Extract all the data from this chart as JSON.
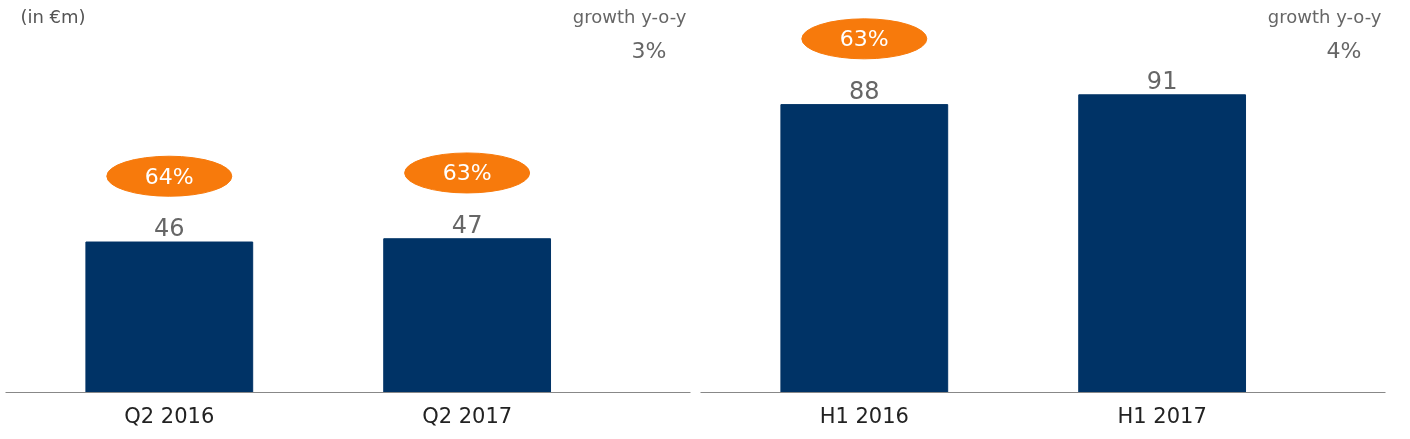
{
  "chart_data": [
    {
      "type": "bar",
      "subtitle": "(in €m)",
      "categories": [
        "Q2 2016",
        "Q2 2017"
      ],
      "values": [
        46,
        47
      ],
      "color": "#003366",
      "data_labels": true,
      "annotations": [
        "growth y-o-y",
        "3%",
        "64%",
        "63%"
      ]
    },
    {
      "type": "bar",
      "categories": [
        "H1 2016",
        "H1 2017"
      ],
      "values": [
        88,
        91
      ],
      "color": "#003366",
      "data_labels": true,
      "annotations": [
        "growth y-o-y",
        "4%",
        "63%"
      ]
    }
  ]
}
